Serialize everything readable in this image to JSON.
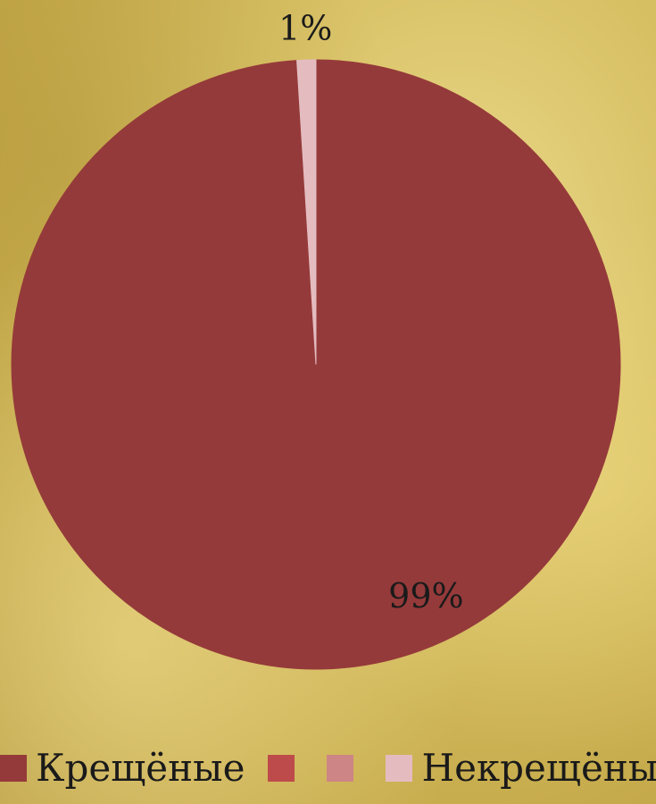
{
  "chart_data": {
    "type": "pie",
    "slices": [
      {
        "name": "Крещёные",
        "value": 99,
        "label": "99%",
        "color": "#953a3a"
      },
      {
        "name": "Некрещёные",
        "value": 1,
        "label": "1%",
        "color": "#e4bcc0"
      }
    ],
    "legend": {
      "placement": "bottom",
      "entries": [
        {
          "label": "Крещёные",
          "color": "#953a3a"
        },
        {
          "label": "",
          "color": "#be4b4b"
        },
        {
          "label": "",
          "color": "#cd8585"
        },
        {
          "label": "Некрещёные",
          "color": "#e4bcc0"
        }
      ]
    }
  }
}
